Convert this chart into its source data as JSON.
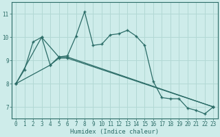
{
  "xlabel": "Humidex (Indice chaleur)",
  "xlim": [
    -0.5,
    23.5
  ],
  "ylim": [
    6.5,
    11.5
  ],
  "xticks": [
    0,
    1,
    2,
    3,
    4,
    5,
    6,
    7,
    8,
    9,
    10,
    11,
    12,
    13,
    14,
    15,
    16,
    17,
    18,
    19,
    20,
    21,
    22,
    23
  ],
  "yticks": [
    7,
    8,
    9,
    10,
    11
  ],
  "bg_color": "#ceecea",
  "grid_color": "#b2d8d4",
  "line_color": "#2a6b66",
  "series1_x": [
    0,
    1,
    2,
    3,
    4,
    5,
    6,
    7,
    8,
    9,
    10,
    11,
    12,
    13,
    14,
    15,
    16,
    17,
    18,
    19,
    20,
    21,
    22,
    23
  ],
  "series1_y": [
    8.0,
    8.6,
    9.8,
    10.0,
    8.8,
    9.15,
    9.2,
    10.05,
    11.1,
    9.65,
    9.7,
    10.1,
    10.15,
    10.3,
    10.05,
    9.65,
    8.1,
    7.4,
    7.35,
    7.35,
    6.95,
    6.85,
    6.7,
    7.0
  ],
  "series2_x": [
    0,
    3,
    5,
    6,
    23
  ],
  "series2_y": [
    8.0,
    10.0,
    9.15,
    9.15,
    7.0
  ],
  "series3_x": [
    0,
    4,
    5,
    6,
    23
  ],
  "series3_y": [
    8.0,
    8.8,
    9.1,
    9.1,
    7.0
  ]
}
